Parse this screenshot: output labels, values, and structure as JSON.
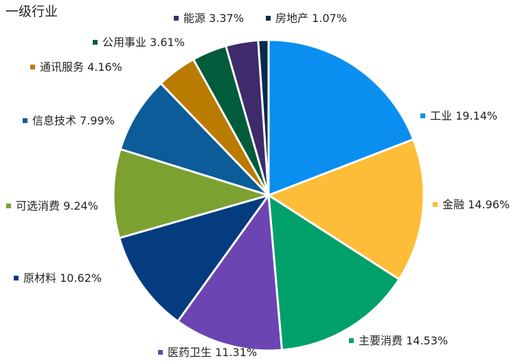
{
  "chart_data": {
    "type": "pie",
    "title": "一级行业",
    "unit": "%",
    "slices": [
      {
        "label": "工业",
        "value": 19.14,
        "color": "#0a8ef0"
      },
      {
        "label": "金融",
        "value": 14.96,
        "color": "#fdbd39"
      },
      {
        "label": "主要消费",
        "value": 14.53,
        "color": "#00a06b"
      },
      {
        "label": "医药卫生",
        "value": 11.31,
        "color": "#6c45b3"
      },
      {
        "label": "原材料",
        "value": 10.62,
        "color": "#053c80"
      },
      {
        "label": "可选消费",
        "value": 9.24,
        "color": "#7ca131"
      },
      {
        "label": "信息技术",
        "value": 7.99,
        "color": "#0b5c98"
      },
      {
        "label": "通讯服务",
        "value": 4.16,
        "color": "#b97b00"
      },
      {
        "label": "公用事业",
        "value": 3.61,
        "color": "#005c3a"
      },
      {
        "label": "能源",
        "value": 3.37,
        "color": "#3d2b6b"
      },
      {
        "label": "房地产",
        "value": 1.07,
        "color": "#0a2a4a"
      }
    ]
  }
}
